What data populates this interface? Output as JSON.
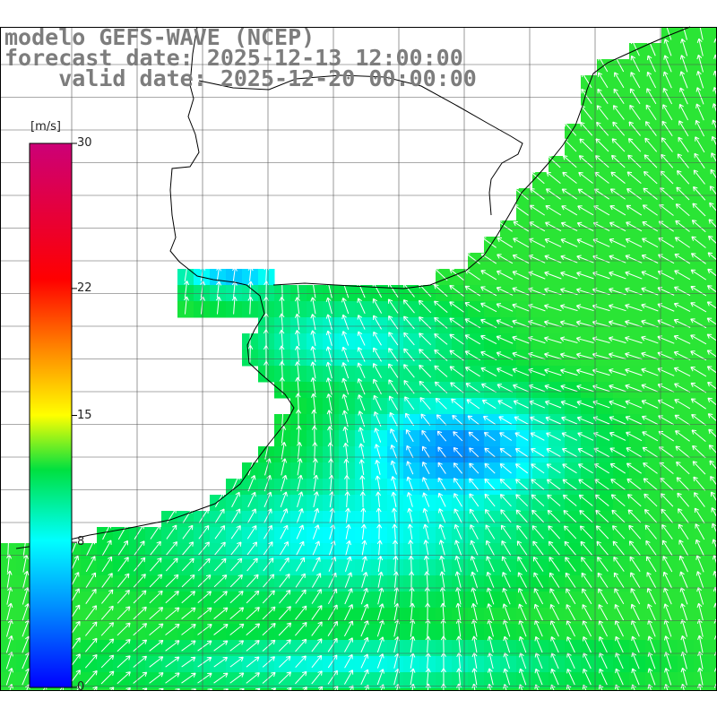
{
  "map": {
    "title_line1": "modelo GEFS-WAVE (NCEP)",
    "title_line2": "forecast date: 2025-12-13 12:00:00",
    "title_line3": "    valid date: 2025-12-20 00:00:00",
    "variable": "wind speed and direction",
    "colorbar": {
      "units": "[m/s]",
      "min": 0,
      "max": 30,
      "ticks": [
        {
          "value": 30,
          "label": "30"
        },
        {
          "value": 22,
          "label": "22"
        },
        {
          "value": 15,
          "label": "15"
        },
        {
          "value": 8,
          "label": "8"
        },
        {
          "value": 0,
          "label": "0"
        }
      ],
      "colors": [
        "#0000ff",
        "#00ffff",
        "#00e000",
        "#ffff00",
        "#ff6600",
        "#ff0000",
        "#cc0066"
      ]
    },
    "region": "Rio de la Plata / South-western Atlantic",
    "grid": true,
    "arrow_color": "#ffffff",
    "coastline_color": "#000000"
  }
}
